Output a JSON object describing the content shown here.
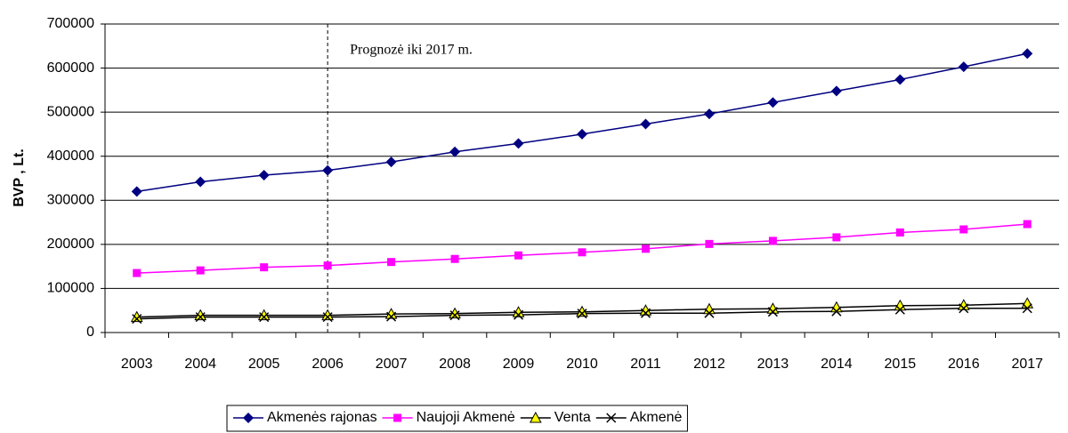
{
  "chart_data": {
    "type": "line",
    "y_label": "BVP , Lt.",
    "categories": [
      "2003",
      "2004",
      "2005",
      "2006",
      "2007",
      "2008",
      "2009",
      "2010",
      "2011",
      "2012",
      "2013",
      "2014",
      "2015",
      "2016",
      "2017"
    ],
    "series": [
      {
        "name": "Akmenės rajonas",
        "color": "#000080",
        "marker": "diamond",
        "marker_color": "#000080",
        "values": [
          320000,
          342000,
          357000,
          368000,
          387000,
          410000,
          429000,
          450000,
          473000,
          496000,
          522000,
          548000,
          574000,
          603000,
          633000
        ]
      },
      {
        "name": "Naujoji Akmenė",
        "color": "#ff00ff",
        "marker": "square",
        "marker_color": "#ff00ff",
        "values": [
          135000,
          141000,
          148000,
          152000,
          160000,
          167000,
          175000,
          182000,
          190000,
          201000,
          208000,
          216000,
          227000,
          234000,
          246000
        ]
      },
      {
        "name": "Venta",
        "color": "#000000",
        "marker": "triangle",
        "marker_color": "#ffff00",
        "values": [
          35000,
          39000,
          39000,
          39000,
          42000,
          43000,
          46000,
          47000,
          50000,
          53000,
          54000,
          57000,
          61000,
          62000,
          66000
        ]
      },
      {
        "name": "Akmenė",
        "color": "#000000",
        "marker": "x",
        "marker_color": "#000000",
        "values": [
          31000,
          35000,
          35000,
          35000,
          36000,
          39000,
          40000,
          43000,
          44000,
          44000,
          47000,
          48000,
          52000,
          55000,
          55000
        ]
      }
    ],
    "ylim": [
      0,
      700000
    ],
    "yticks": [
      0,
      100000,
      200000,
      300000,
      400000,
      500000,
      600000,
      700000
    ],
    "grid": true,
    "annotation": {
      "text": "Prognozė iki 2017 m.",
      "x": "2006"
    },
    "legend": "bottom"
  }
}
